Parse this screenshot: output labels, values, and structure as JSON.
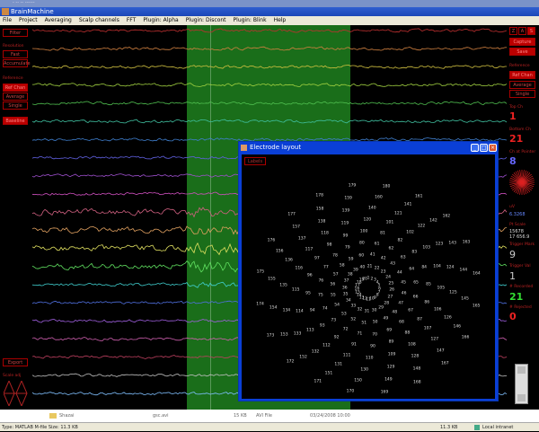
{
  "window": {
    "top_title": "- -- -- ------",
    "title": "BrainMachine"
  },
  "menu": [
    "File",
    "Project",
    "Averaging",
    "Scalp channels",
    "FFT",
    "Plugin: Alpha",
    "Plugin: Discont",
    "Plugin: Blink",
    "Help"
  ],
  "left_panel": {
    "filter": "Filter",
    "mode_label": "Resolution",
    "fast": "Fast",
    "accumulate": "Accumulate",
    "ref_label": "Reference",
    "ref_selected": "Ref Chan",
    "average": "Average",
    "single": "Single",
    "baseline": "Baseline",
    "export": "Export",
    "scale_label": "Scale adj"
  },
  "right_panel": {
    "zas": [
      "Z",
      "A",
      "S"
    ],
    "capture": "Capture",
    "save": "Save",
    "ref_label": "Reference",
    "ref_selected": "Ref Chan",
    "average": "Average",
    "single": "Single",
    "top_ch_label": "Top Ch",
    "top_ch": "1",
    "bottom_ch_label": "Bottom Ch",
    "bottom_ch": "21",
    "ch_pointer_label": "Ch at Pointer",
    "ch_pointer": "8",
    "uv_label": "uV",
    "uv_value": "6.3268",
    "pt_label": "Pt Scale",
    "pt_values": [
      "15678",
      "17 656.9"
    ],
    "trig_mark_label": "Trigger Mark",
    "trig_mark": "9",
    "trig_val_label": "Trigger Val",
    "trig_val": "1",
    "recorded_label": "# Recorded",
    "recorded": "21",
    "rejected_label": "# Rejected",
    "rejected": "0"
  },
  "trace_colors": [
    "#c03030",
    "#d08040",
    "#d0c040",
    "#a0d040",
    "#50c050",
    "#40c0a0",
    "#4080d0",
    "#6060e0",
    "#a050d0",
    "#d050c0",
    "#d06080",
    "#e0a060",
    "#e0e060",
    "#60e060",
    "#40d0d0",
    "#5070e0",
    "#a060e0",
    "#d060b0",
    "#c04060",
    "#c0c0c0",
    "#80c0ff"
  ],
  "electrode_window": {
    "title": "Electrode layout",
    "button": "Labels",
    "labels": [
      "1",
      "2",
      "3",
      "4",
      "5",
      "6",
      "7",
      "8",
      "9",
      "10",
      "11",
      "12",
      "13",
      "14",
      "15",
      "16",
      "17",
      "18",
      "19",
      "20",
      "21",
      "22",
      "23",
      "24",
      "25",
      "26",
      "27",
      "28",
      "29",
      "30",
      "31",
      "32",
      "33",
      "34",
      "35",
      "36",
      "37",
      "38",
      "39",
      "40",
      "41",
      "42",
      "43",
      "44",
      "45",
      "46",
      "47",
      "48",
      "49",
      "50",
      "51",
      "52",
      "53",
      "54",
      "55",
      "56",
      "57",
      "58",
      "59",
      "60",
      "61",
      "62",
      "63",
      "64",
      "65",
      "66",
      "67",
      "68",
      "69",
      "70",
      "71",
      "72",
      "73",
      "74",
      "75",
      "76",
      "77",
      "78",
      "79",
      "80",
      "81",
      "82",
      "83",
      "84",
      "85",
      "86",
      "87",
      "88",
      "89",
      "90",
      "91",
      "92",
      "93",
      "94",
      "95",
      "96",
      "97",
      "98",
      "99",
      "100",
      "101",
      "102",
      "103",
      "104",
      "105",
      "106",
      "107",
      "108",
      "109",
      "110",
      "111",
      "112",
      "113",
      "114",
      "115",
      "116",
      "117",
      "118",
      "119",
      "120",
      "121",
      "122",
      "123",
      "124",
      "125",
      "126",
      "127",
      "128",
      "129",
      "130",
      "131",
      "132",
      "133",
      "134",
      "135",
      "136",
      "137",
      "138",
      "139",
      "140",
      "141",
      "142",
      "143",
      "144",
      "145",
      "146",
      "147",
      "148",
      "149",
      "150",
      "151",
      "152",
      "153",
      "154",
      "155",
      "156",
      "157",
      "158",
      "159",
      "160",
      "161",
      "162",
      "163",
      "164",
      "165",
      "166",
      "167",
      "168",
      "169",
      "170",
      "171",
      "172",
      "173",
      "174",
      "175",
      "176",
      "177",
      "178",
      "179",
      "180"
    ]
  },
  "explorer": {
    "name": "Shazai",
    "file": "gsc.avi",
    "size": "15 KB",
    "type": "AVI File",
    "date": "03/24/2008 10:00"
  },
  "status": {
    "left": "Type: MATLAB M-file Size: 11.3 KB",
    "size": "11.3 KB",
    "zone": "Local intranet"
  }
}
